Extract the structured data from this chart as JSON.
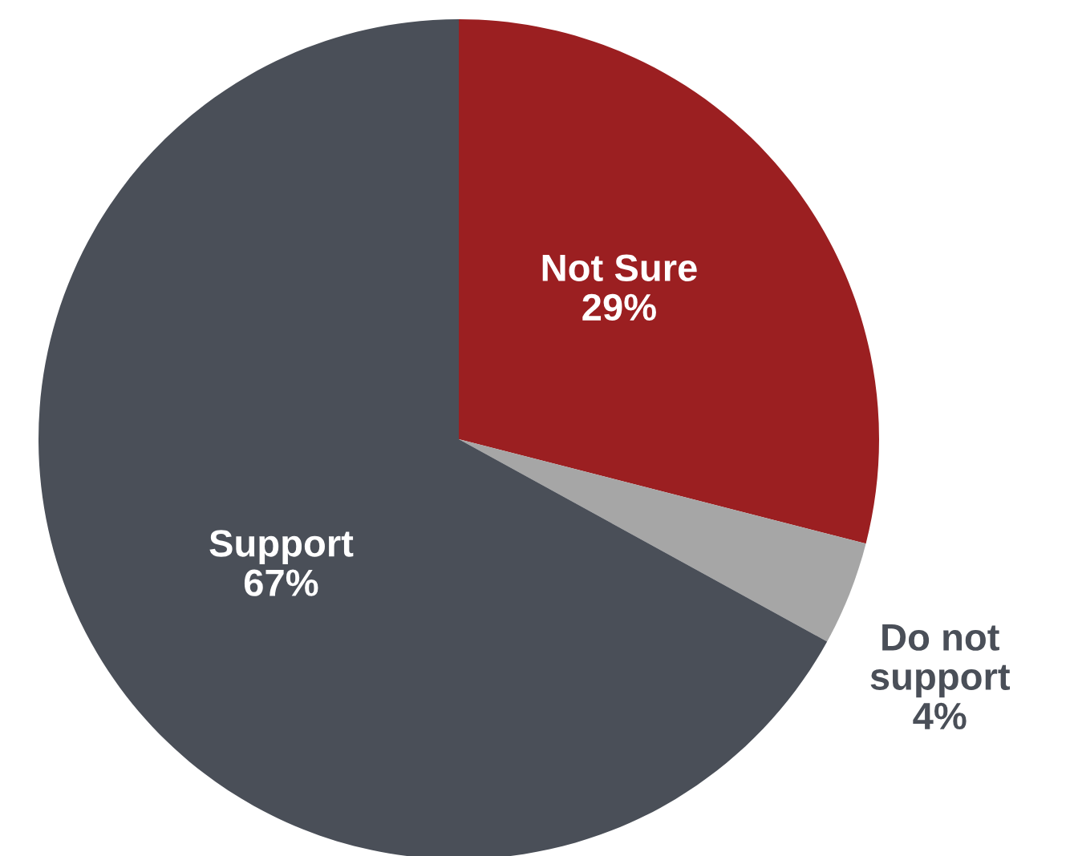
{
  "chart_data": {
    "type": "pie",
    "categories": [
      "Not Sure",
      "Do not support",
      "Support"
    ],
    "values": [
      29,
      4,
      67
    ],
    "colors": [
      "#9b1f21",
      "#a6a6a6",
      "#4a4f58"
    ],
    "value_labels": [
      "29%",
      "4%",
      "67%"
    ]
  }
}
